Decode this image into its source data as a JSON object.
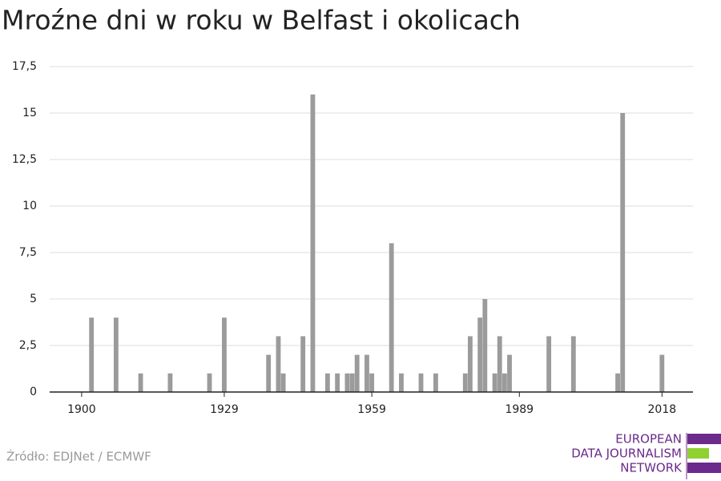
{
  "chart_data": {
    "type": "bar",
    "title": "Mroźne dni w roku w Belfast i okolicach",
    "x": [
      1902,
      1907,
      1912,
      1918,
      1926,
      1929,
      1938,
      1940,
      1941,
      1945,
      1947,
      1950,
      1952,
      1954,
      1955,
      1956,
      1958,
      1959,
      1963,
      1965,
      1969,
      1972,
      1978,
      1979,
      1981,
      1982,
      1984,
      1985,
      1986,
      1987,
      1995,
      2000,
      2009,
      2010,
      2018
    ],
    "values": [
      4,
      4,
      1,
      1,
      1,
      4,
      2,
      3,
      1,
      3,
      16,
      1,
      1,
      1,
      1,
      2,
      2,
      1,
      8,
      1,
      1,
      1,
      1,
      3,
      4,
      5,
      1,
      3,
      1,
      2,
      3,
      3,
      1,
      15,
      2
    ],
    "color": "#9b9b9b",
    "xlim": [
      1893.5,
      2024.3
    ],
    "xticks": [
      1900,
      1929,
      1959,
      1989,
      2018
    ],
    "ylim": [
      0,
      17.5
    ],
    "yticks": [
      0,
      {
        "value": 2.5,
        "label": "2,5"
      },
      5,
      {
        "value": 7.5,
        "label": "7,5"
      },
      10,
      {
        "value": 12.5,
        "label": "12,5"
      },
      15,
      {
        "value": 17.5,
        "label": "17,5"
      }
    ],
    "grid": true,
    "source": "Źródło: EDJNet / ECMWF",
    "logo": [
      "EUROPEAN",
      "DATA JOURNALISM",
      "NETWORK"
    ]
  }
}
